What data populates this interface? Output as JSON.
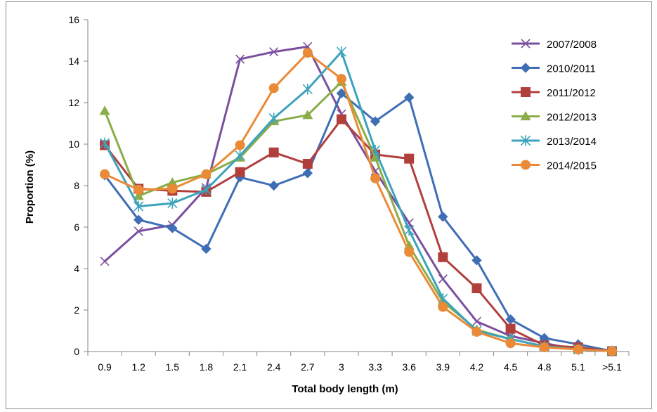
{
  "chart_data": {
    "type": "line",
    "title": "",
    "xlabel": "Total body length (m)",
    "ylabel": "Proportion (%)",
    "ylim": [
      0,
      16
    ],
    "yticks": [
      0,
      2,
      4,
      6,
      8,
      10,
      12,
      14,
      16
    ],
    "categories": [
      "0.9",
      "1.2",
      "1.5",
      "1.8",
      "2.1",
      "2.4",
      "2.7",
      "3",
      "3.3",
      "3.6",
      "3.9",
      "4.2",
      "4.5",
      "4.8",
      "5.1",
      ">5.1"
    ],
    "grid": false,
    "legend_position": "right",
    "series": [
      {
        "name": "2007/2008",
        "color": "#7b4f9d",
        "marker": "x",
        "values": [
          4.35,
          5.8,
          6.1,
          7.9,
          14.1,
          14.45,
          14.7,
          11.45,
          8.7,
          6.2,
          3.5,
          1.45,
          0.75,
          0.4,
          0.1,
          0.02
        ]
      },
      {
        "name": "2010/2011",
        "color": "#3f6eb5",
        "marker": "diamond",
        "values": [
          8.5,
          6.35,
          5.95,
          4.95,
          8.4,
          8.0,
          8.6,
          12.45,
          11.1,
          12.25,
          6.5,
          4.4,
          1.55,
          0.65,
          0.35,
          0.02
        ]
      },
      {
        "name": "2011/2012",
        "color": "#b1403d",
        "marker": "square",
        "values": [
          9.95,
          7.85,
          7.75,
          7.7,
          8.65,
          9.6,
          9.05,
          11.2,
          9.5,
          9.3,
          4.55,
          3.05,
          1.1,
          0.3,
          0.2,
          0.02
        ]
      },
      {
        "name": "2012/2013",
        "color": "#8bac46",
        "marker": "triangle",
        "values": [
          11.6,
          7.5,
          8.15,
          8.55,
          9.35,
          11.1,
          11.4,
          13.0,
          9.35,
          5.1,
          2.4,
          1.05,
          0.6,
          0.25,
          0.1,
          0.02
        ]
      },
      {
        "name": "2013/2014",
        "color": "#3ca3bd",
        "marker": "star",
        "values": [
          10.05,
          7.0,
          7.15,
          7.8,
          9.45,
          11.25,
          12.65,
          14.45,
          9.7,
          5.85,
          2.55,
          1.0,
          0.6,
          0.25,
          0.1,
          0.02
        ]
      },
      {
        "name": "2014/2015",
        "color": "#eb8a36",
        "marker": "circle",
        "values": [
          8.55,
          7.8,
          7.85,
          8.55,
          9.95,
          12.7,
          14.4,
          13.15,
          8.35,
          4.8,
          2.15,
          0.95,
          0.4,
          0.2,
          0.1,
          0.02
        ]
      }
    ]
  }
}
